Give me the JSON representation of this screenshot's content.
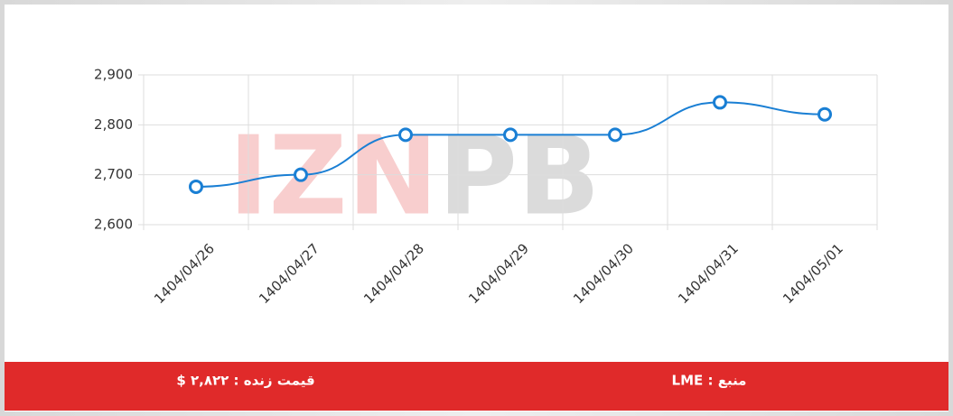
{
  "chart_data": {
    "type": "line",
    "categories": [
      "1404/04/26",
      "1404/04/27",
      "1404/04/28",
      "1404/04/29",
      "1404/04/30",
      "1404/04/31",
      "1404/05/01"
    ],
    "values": [
      2676,
      2700,
      2780,
      2780,
      2780,
      2845,
      2821
    ],
    "color": "#1a7fd4",
    "ylim": [
      2600,
      2900
    ],
    "yticks": [
      {
        "value": 2600,
        "label": "2,600"
      },
      {
        "value": 2700,
        "label": "2,700"
      },
      {
        "value": 2800,
        "label": "2,800"
      },
      {
        "value": 2900,
        "label": "2,900"
      }
    ],
    "grid": true
  },
  "watermark": {
    "red_part": "IZN",
    "gray_part": "PB"
  },
  "footer": {
    "live_price": "قیمت زنده : ۲,۸۲۲ $",
    "source": "منبع : LME"
  }
}
